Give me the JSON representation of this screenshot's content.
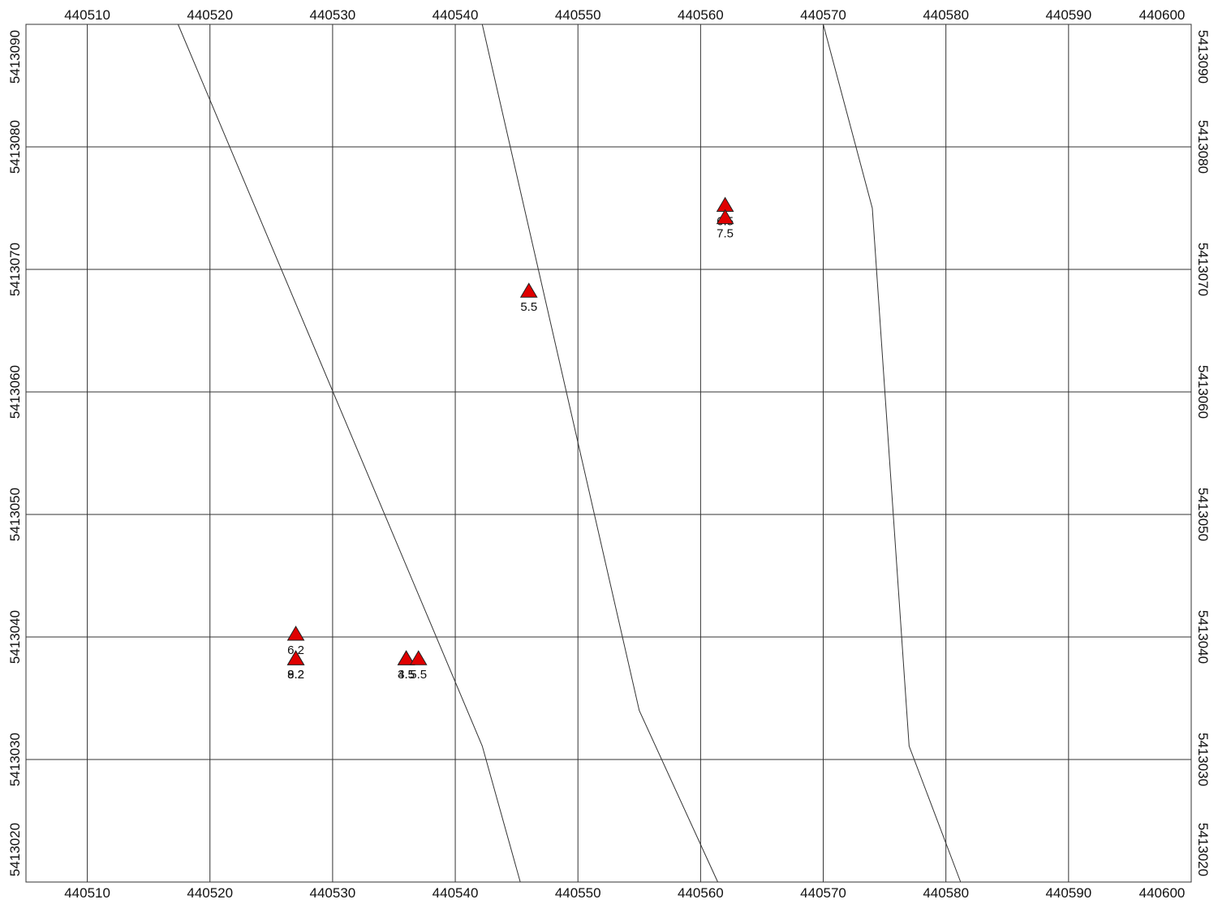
{
  "chart_data": {
    "type": "scatter",
    "xlim": [
      440505,
      440600
    ],
    "ylim": [
      5413020,
      5413090
    ],
    "xticks": [
      440510,
      440520,
      440530,
      440540,
      440550,
      440560,
      440570,
      440580,
      440590,
      440600
    ],
    "yticks": [
      5413020,
      5413030,
      5413040,
      5413050,
      5413060,
      5413070,
      5413080,
      5413090
    ],
    "grid": true,
    "color": "#e00000",
    "lines": [
      {
        "x": [
          440517.4,
          440542.2,
          440545.3
        ],
        "y": [
          5413090,
          5413031.1,
          5413020
        ]
      },
      {
        "x": [
          440542.2,
          440555.0,
          440561.4
        ],
        "y": [
          5413090,
          5413034.0,
          5413020
        ]
      },
      {
        "x": [
          440570.0,
          440574.0,
          440577.0,
          440581.2
        ],
        "y": [
          5413090,
          5413075.0,
          5413031.1,
          5413020
        ]
      }
    ],
    "points": [
      {
        "x": 440527,
        "y": 5413040,
        "value": 6.2
      },
      {
        "x": 440527,
        "y": 5413038,
        "value": 8.2
      },
      {
        "x": 440527,
        "y": 5413038,
        "value": 9.2
      },
      {
        "x": 440536,
        "y": 5413038,
        "value": 3.5
      },
      {
        "x": 440536,
        "y": 5413038,
        "value": 4.5
      },
      {
        "x": 440537,
        "y": 5413038,
        "value": 5.5
      },
      {
        "x": 440546,
        "y": 5413068,
        "value": 5.5
      },
      {
        "x": 440562,
        "y": 5413075,
        "value": 6.5
      },
      {
        "x": 440562,
        "y": 5413074,
        "value": 7.5
      }
    ]
  }
}
